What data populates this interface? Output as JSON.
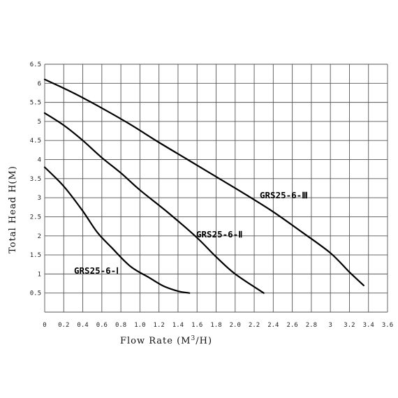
{
  "chart_data": {
    "type": "line",
    "xlabel_prefix": "Flow Rate (M",
    "xlabel_sup": "3",
    "xlabel_suffix": "/H)",
    "ylabel": "Total Head H(M)",
    "xlim": [
      0,
      3.6
    ],
    "ylim": [
      0,
      6.5
    ],
    "x_ticks": [
      0,
      0.2,
      0.4,
      0.6,
      0.8,
      1.0,
      1.2,
      1.4,
      1.6,
      1.8,
      2.0,
      2.2,
      2.4,
      2.6,
      2.8,
      3.0,
      3.2,
      3.4,
      3.6
    ],
    "x_tick_labels": [
      "0",
      "0.2",
      "0.4",
      "0.6",
      "0.8",
      "1.0",
      "1.2",
      "1.4",
      "1.6",
      "1.8",
      "2.0",
      "2.2",
      "2.4",
      "2.6",
      "2.8",
      "3",
      "3.2",
      "3.4",
      "3.6"
    ],
    "y_ticks": [
      0.5,
      1,
      1.5,
      2,
      2.5,
      3,
      3.5,
      4,
      4.5,
      5,
      5.5,
      6,
      6.5
    ],
    "y_tick_labels": [
      "0.5",
      "1",
      "1.5",
      "2",
      "2.5",
      "3",
      "3.5",
      "4",
      "4.5",
      "5",
      "5.5",
      "6",
      "6.5"
    ],
    "grid": true,
    "series": [
      {
        "name": "GRS25-6-Ⅰ",
        "x": [
          0,
          0.2,
          0.4,
          0.55,
          0.7,
          0.9,
          1.1,
          1.25,
          1.4,
          1.52
        ],
        "y": [
          3.8,
          3.3,
          2.65,
          2.1,
          1.7,
          1.2,
          0.9,
          0.68,
          0.55,
          0.5
        ]
      },
      {
        "name": "GRS25-6-Ⅱ",
        "x": [
          0,
          0.2,
          0.4,
          0.6,
          0.8,
          1.0,
          1.3,
          1.6,
          1.8,
          2.0,
          2.3
        ],
        "y": [
          5.22,
          4.9,
          4.5,
          4.05,
          3.65,
          3.2,
          2.6,
          1.95,
          1.45,
          1.0,
          0.5
        ]
      },
      {
        "name": "GRS25-6-Ⅲ",
        "x": [
          0,
          0.3,
          0.6,
          0.9,
          1.2,
          1.5,
          1.8,
          2.1,
          2.4,
          2.7,
          3.0,
          3.2,
          3.35
        ],
        "y": [
          6.1,
          5.75,
          5.35,
          4.92,
          4.45,
          4.0,
          3.55,
          3.1,
          2.63,
          2.1,
          1.55,
          1.05,
          0.7
        ]
      }
    ]
  }
}
